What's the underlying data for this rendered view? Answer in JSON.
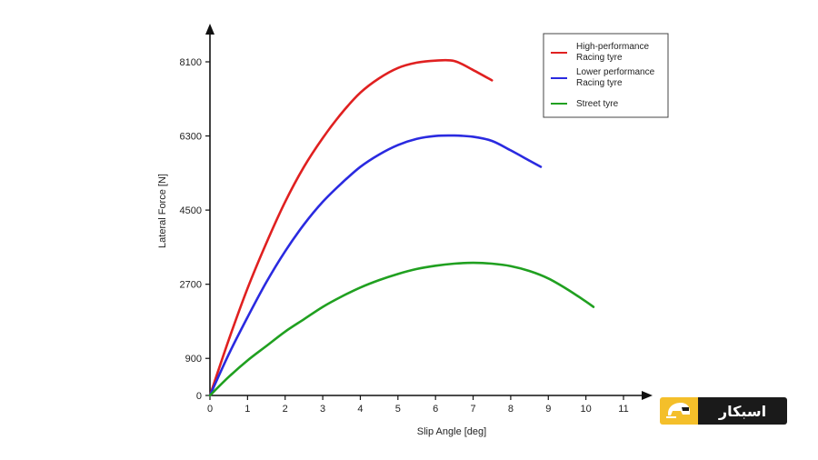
{
  "chart_data": {
    "type": "line",
    "title": "",
    "xlabel": "Slip Angle [deg]",
    "ylabel": "Lateral Force [N]",
    "xlim": [
      0,
      11.5
    ],
    "ylim": [
      0,
      8600
    ],
    "xticks": [
      0,
      1,
      2,
      3,
      4,
      5,
      6,
      7,
      8,
      9,
      10,
      11
    ],
    "yticks": [
      0,
      900,
      2700,
      4500,
      6300,
      8100
    ],
    "grid": false,
    "legend_position": "top-right",
    "series": [
      {
        "name": "High-performance Racing tyre",
        "color": "#e02020",
        "x": [
          0,
          0.5,
          1,
          1.5,
          2,
          2.5,
          3,
          3.5,
          4,
          4.5,
          5,
          5.5,
          6,
          6.5,
          7,
          7.5
        ],
        "y": [
          0,
          1350,
          2600,
          3700,
          4700,
          5550,
          6250,
          6850,
          7350,
          7700,
          7950,
          8080,
          8130,
          8120,
          7900,
          7650
        ]
      },
      {
        "name": "Lower performance Racing tyre",
        "color": "#2a2ae0",
        "x": [
          0,
          0.5,
          1,
          1.5,
          2,
          2.5,
          3,
          3.5,
          4,
          4.5,
          5,
          5.5,
          6,
          6.5,
          7,
          7.5,
          8,
          8.5,
          8.8
        ],
        "y": [
          0,
          1000,
          1900,
          2750,
          3500,
          4150,
          4700,
          5150,
          5550,
          5850,
          6080,
          6230,
          6300,
          6310,
          6280,
          6180,
          5950,
          5700,
          5550
        ]
      },
      {
        "name": "Street tyre",
        "color": "#20a020",
        "x": [
          0,
          0.5,
          1,
          1.5,
          2,
          2.5,
          3,
          3.5,
          4,
          4.5,
          5,
          5.5,
          6,
          6.5,
          7,
          7.5,
          8,
          8.5,
          9,
          9.5,
          10,
          10.2
        ],
        "y": [
          0,
          450,
          850,
          1200,
          1550,
          1850,
          2150,
          2400,
          2620,
          2800,
          2950,
          3070,
          3150,
          3200,
          3220,
          3200,
          3140,
          3020,
          2840,
          2580,
          2280,
          2150
        ]
      }
    ]
  },
  "legend": [
    {
      "label_line1": "High-performance",
      "label_line2": "Racing tyre",
      "color": "#e02020"
    },
    {
      "label_line1": "Lower performance",
      "label_line2": "Racing tyre",
      "color": "#2a2ae0"
    },
    {
      "label_line1": "Street tyre",
      "label_line2": "",
      "color": "#20a020"
    }
  ],
  "logo": {
    "text": "اسبکار",
    "icon": "helmet-icon",
    "mark_color": "#f4bf2a",
    "word_color": "#1a1a1a"
  }
}
